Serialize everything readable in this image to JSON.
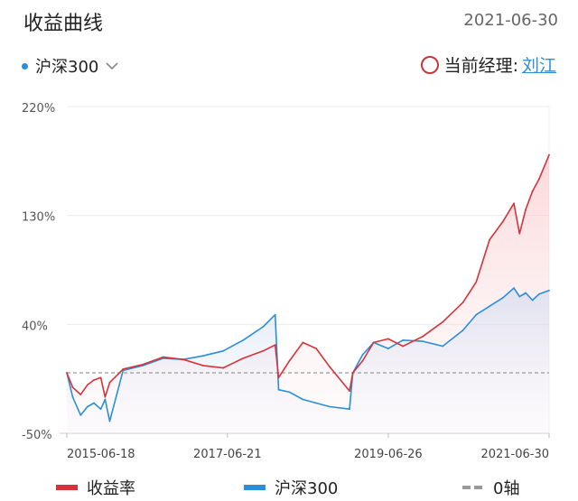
{
  "header": {
    "title": "收益曲线",
    "date": "2021-06-30"
  },
  "index_selector": {
    "label": "沪深300",
    "dot_color": "#2b8ed8",
    "icon": "chevron-down-icon"
  },
  "manager": {
    "label": "当前经理:",
    "name": "刘江",
    "marker_color": "#c9363a"
  },
  "legend": {
    "return_label": "收益率",
    "index_label": "沪深300",
    "zero_label": "0轴"
  },
  "colors": {
    "return": "#d7323a",
    "index": "#2b8ed8",
    "zero": "#999999"
  },
  "chart_data": {
    "type": "line",
    "x_ticks": [
      "2015-06-18",
      "2017-06-21",
      "2019-06-26",
      "2021-06-30"
    ],
    "y_ticks": [
      "220%",
      "130%",
      "40%",
      "-50%"
    ],
    "ylim": [
      -50,
      220
    ],
    "xlim": [
      "2015-06-18",
      "2021-06-30"
    ],
    "grid": true,
    "zero_line": 0,
    "series": [
      {
        "name": "收益率",
        "color": "#d7323a",
        "x": [
          "2015-06-18",
          "2015-07-15",
          "2015-08-20",
          "2015-09-20",
          "2015-10-20",
          "2015-11-20",
          "2015-12-10",
          "2015-12-31",
          "2016-03-01",
          "2016-06-01",
          "2016-09-01",
          "2016-12-01",
          "2017-03-01",
          "2017-06-01",
          "2017-09-01",
          "2017-12-01",
          "2018-01-25",
          "2018-02-10",
          "2018-04-01",
          "2018-06-01",
          "2018-08-01",
          "2018-10-01",
          "2018-12-31",
          "2019-01-15",
          "2019-03-01",
          "2019-04-20",
          "2019-06-26",
          "2019-09-01",
          "2019-12-01",
          "2020-03-01",
          "2020-06-01",
          "2020-08-01",
          "2020-10-01",
          "2020-12-01",
          "2021-01-20",
          "2021-02-15",
          "2021-03-15",
          "2021-04-15",
          "2021-05-15",
          "2021-06-30"
        ],
        "y": [
          0,
          -12,
          -18,
          -10,
          -6,
          -4,
          -20,
          -8,
          3,
          7,
          13,
          11,
          6,
          4,
          12,
          18,
          23,
          -4,
          10,
          25,
          20,
          5,
          -15,
          0,
          10,
          25,
          28,
          22,
          30,
          42,
          58,
          75,
          110,
          125,
          140,
          115,
          135,
          150,
          160,
          180
        ]
      },
      {
        "name": "沪深300",
        "color": "#2b8ed8",
        "x": [
          "2015-06-18",
          "2015-07-15",
          "2015-08-20",
          "2015-09-20",
          "2015-10-20",
          "2015-11-20",
          "2015-12-10",
          "2015-12-31",
          "2016-03-01",
          "2016-06-01",
          "2016-09-01",
          "2016-12-01",
          "2017-03-01",
          "2017-06-01",
          "2017-09-01",
          "2017-12-01",
          "2018-01-25",
          "2018-02-10",
          "2018-04-01",
          "2018-06-01",
          "2018-08-01",
          "2018-10-01",
          "2018-12-31",
          "2019-01-15",
          "2019-03-01",
          "2019-04-20",
          "2019-06-26",
          "2019-09-01",
          "2019-12-01",
          "2020-03-01",
          "2020-06-01",
          "2020-08-01",
          "2020-10-01",
          "2020-12-01",
          "2021-01-20",
          "2021-02-15",
          "2021-03-15",
          "2021-04-15",
          "2021-05-15",
          "2021-06-30"
        ],
        "y": [
          0,
          -20,
          -35,
          -28,
          -25,
          -30,
          -22,
          -40,
          2,
          6,
          12,
          11,
          14,
          18,
          27,
          38,
          48,
          -14,
          -16,
          -22,
          -25,
          -28,
          -30,
          0,
          15,
          25,
          20,
          27,
          26,
          22,
          35,
          48,
          55,
          62,
          70,
          63,
          66,
          60,
          65,
          68
        ]
      }
    ]
  }
}
